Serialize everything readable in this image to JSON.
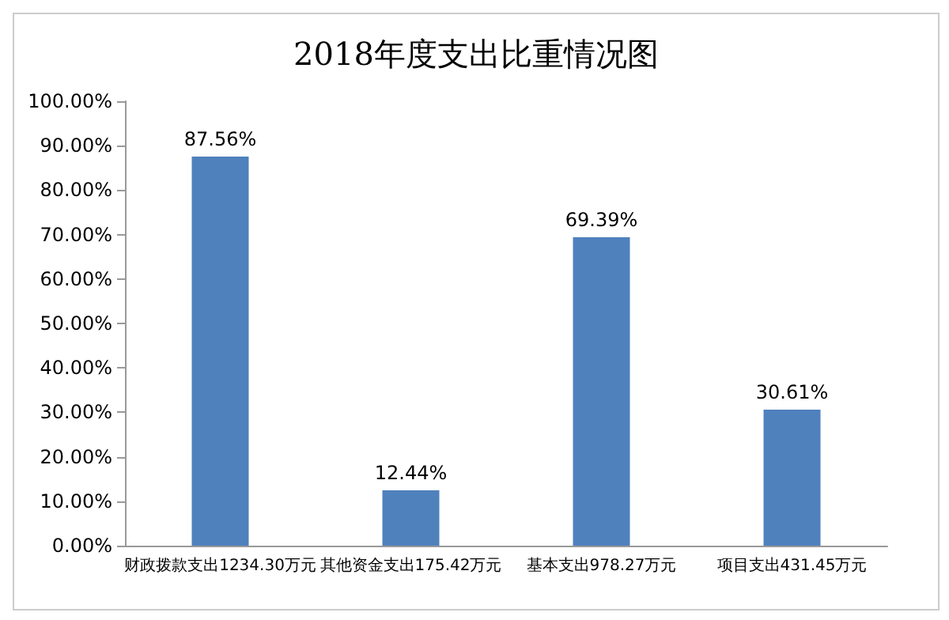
{
  "chart_data": {
    "type": "bar",
    "title": "2018年度支出比重情况图",
    "categories": [
      "财政拨款支出1234.30万元",
      "其他资金支出175.42万元",
      "基本支出978.27万元",
      "项目支出431.45万元"
    ],
    "values": [
      87.56,
      12.44,
      69.39,
      30.61
    ],
    "color": "#4f81bd",
    "value_labels": [
      "87.56%",
      "12.44%",
      "69.39%",
      "30.61%"
    ],
    "ylim": [
      0,
      100
    ],
    "yticks": [
      {
        "value": 0,
        "label": "0.00%"
      },
      {
        "value": 10,
        "label": "10.00%"
      },
      {
        "value": 20,
        "label": "20.00%"
      },
      {
        "value": 30,
        "label": "30.00%"
      },
      {
        "value": 40,
        "label": "40.00%"
      },
      {
        "value": 50,
        "label": "50.00%"
      },
      {
        "value": 60,
        "label": "60.00%"
      },
      {
        "value": 70,
        "label": "70.00%"
      },
      {
        "value": 80,
        "label": "80.00%"
      },
      {
        "value": 90,
        "label": "90.00%"
      },
      {
        "value": 100,
        "label": "100.00%"
      }
    ],
    "grid": false
  }
}
